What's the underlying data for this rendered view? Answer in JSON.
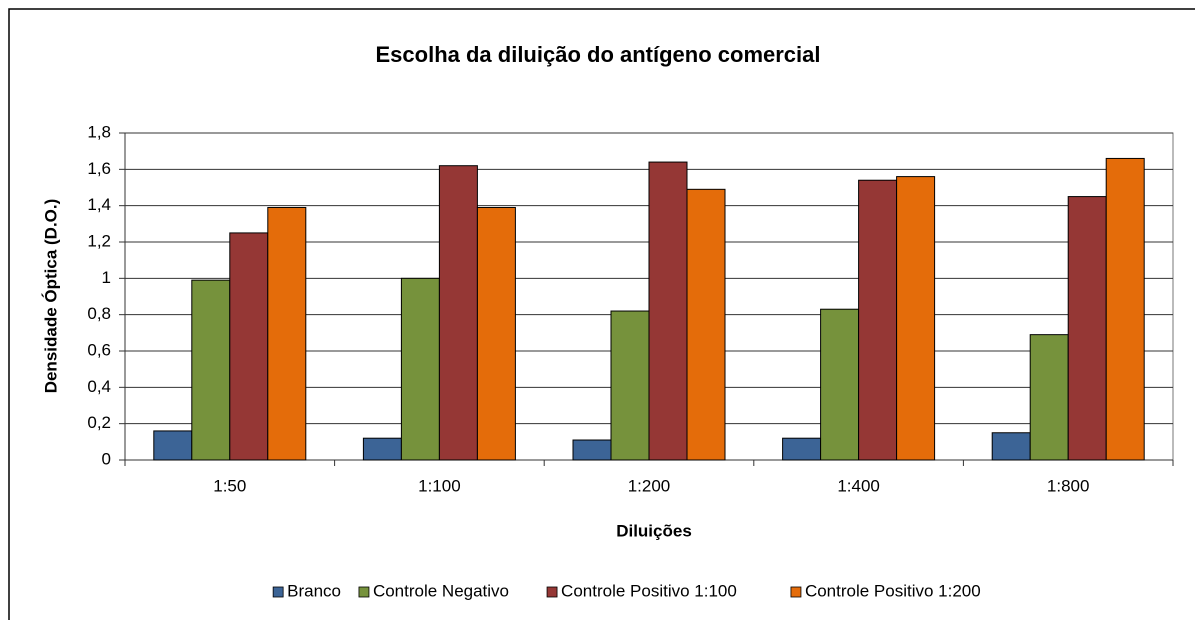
{
  "chart_data": {
    "type": "bar",
    "title": "Escolha da diluição do antígeno comercial",
    "x_label": "Diluições",
    "y_label": "Densidade Óptica (D.O.)",
    "categories": [
      "1:50",
      "1:100",
      "1:200",
      "1:400",
      "1:800"
    ],
    "series": [
      {
        "name": "Branco",
        "color": "#3c6496",
        "values": [
          0.16,
          0.12,
          0.11,
          0.12,
          0.15
        ]
      },
      {
        "name": "Controle Negativo",
        "color": "#76923c",
        "values": [
          0.99,
          1.0,
          0.82,
          0.83,
          0.69
        ]
      },
      {
        "name": "Controle Positivo 1:100",
        "color": "#953735",
        "values": [
          1.25,
          1.62,
          1.64,
          1.54,
          1.45
        ]
      },
      {
        "name": "Controle Positivo 1:200",
        "color": "#e46c0a",
        "values": [
          1.39,
          1.39,
          1.49,
          1.56,
          1.66
        ]
      }
    ],
    "ylim": [
      0,
      1.8
    ],
    "yticks": [
      0,
      {
        "value": 0.2,
        "label": "0,2"
      },
      {
        "value": 0.4,
        "label": "0,4"
      },
      {
        "value": 0.6,
        "label": "0,6"
      },
      {
        "value": 0.8,
        "label": "0,8"
      },
      1,
      {
        "value": 1.2,
        "label": "1,2"
      },
      {
        "value": 1.4,
        "label": "1,4"
      },
      {
        "value": 1.6,
        "label": "1,6"
      },
      {
        "value": 1.8,
        "label": "1,8"
      }
    ],
    "grid": true,
    "legend": "bottom"
  }
}
